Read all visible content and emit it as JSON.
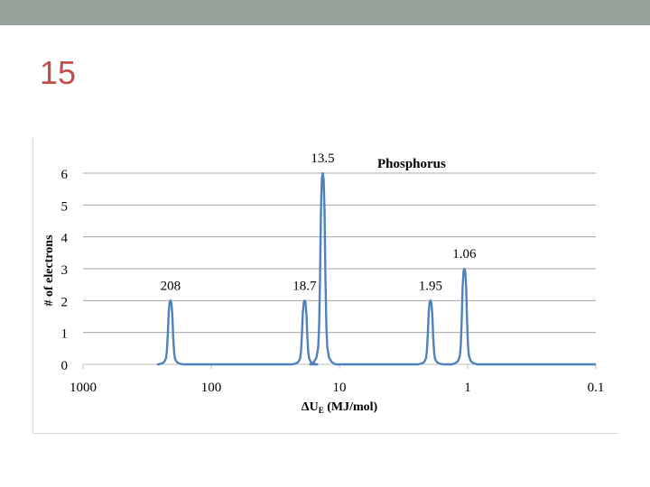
{
  "slide": {
    "number": "15"
  },
  "colors": {
    "top_bar": "#97a39a",
    "slide_number": "#c0504d",
    "series": "#4f81bd",
    "grid": "#a6a6a6"
  },
  "chart_data": {
    "type": "line",
    "title": "Phosphorus",
    "xlabel": "ΔU",
    "xlabel_sub": "E",
    "xlabel_unit": " (MJ/mol)",
    "ylabel": "# of electrons",
    "x_scale": "log",
    "x_reversed": true,
    "xlim": [
      1000,
      0.1
    ],
    "ylim": [
      0,
      6
    ],
    "x_ticks": [
      1000,
      100,
      10,
      1,
      0.1
    ],
    "x_tick_labels": [
      "1000",
      "100",
      "10",
      "1",
      "0.1"
    ],
    "y_ticks": [
      0,
      1,
      2,
      3,
      4,
      5,
      6
    ],
    "y_tick_labels": [
      "0",
      "1",
      "2",
      "3",
      "4",
      "5",
      "6"
    ],
    "grid": true,
    "series": [
      {
        "peaks": [
          {
            "x": 208,
            "y": 2,
            "label": "208"
          },
          {
            "x": 18.7,
            "y": 2,
            "label": "18.7"
          },
          {
            "x": 13.5,
            "y": 6,
            "label": "13.5"
          },
          {
            "x": 1.95,
            "y": 2,
            "label": "1.95"
          },
          {
            "x": 1.06,
            "y": 3,
            "label": "1.06"
          }
        ]
      }
    ]
  }
}
